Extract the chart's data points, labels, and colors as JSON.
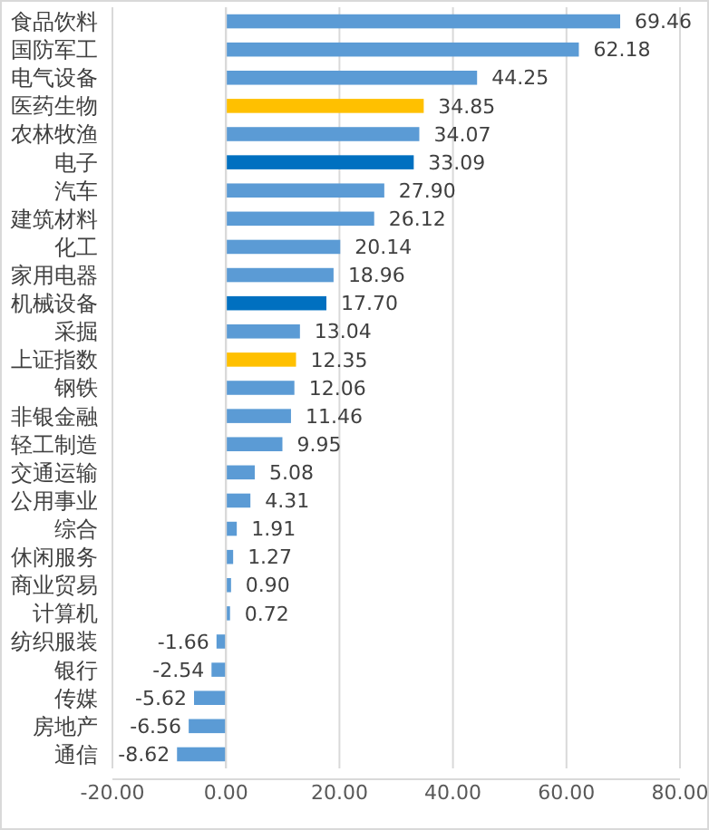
{
  "chart_data": {
    "type": "bar",
    "orientation": "horizontal",
    "categories": [
      "食品饮料",
      "国防军工",
      "电气设备",
      "医药生物",
      "农林牧渔",
      "电子",
      "汽车",
      "建筑材料",
      "化工",
      "家用电器",
      "机械设备",
      "采掘",
      "上证指数",
      "钢铁",
      "非银金融",
      "轻工制造",
      "交通运输",
      "公用事业",
      "综合",
      "休闲服务",
      "商业贸易",
      "计算机",
      "纺织服装",
      "银行",
      "传媒",
      "房地产",
      "通信"
    ],
    "values": [
      69.46,
      62.18,
      44.25,
      34.85,
      34.07,
      33.09,
      27.9,
      26.12,
      20.14,
      18.96,
      17.7,
      13.04,
      12.35,
      12.06,
      11.46,
      9.95,
      5.08,
      4.31,
      1.91,
      1.27,
      0.9,
      0.72,
      -1.66,
      -2.54,
      -5.62,
      -6.56,
      -8.62
    ],
    "value_labels": [
      "69.46",
      "62.18",
      "44.25",
      "34.85",
      "34.07",
      "33.09",
      "27.90",
      "26.12",
      "20.14",
      "18.96",
      "17.70",
      "13.04",
      "12.35",
      "12.06",
      "11.46",
      "9.95",
      "5.08",
      "4.31",
      "1.91",
      "1.27",
      "0.90",
      "0.72",
      "-1.66",
      "-2.54",
      "-5.62",
      "-6.56",
      "-8.62"
    ],
    "colors": [
      "#5b9bd5",
      "#5b9bd5",
      "#5b9bd5",
      "#ffc000",
      "#5b9bd5",
      "#0070c0",
      "#5b9bd5",
      "#5b9bd5",
      "#5b9bd5",
      "#5b9bd5",
      "#0070c0",
      "#5b9bd5",
      "#ffc000",
      "#5b9bd5",
      "#5b9bd5",
      "#5b9bd5",
      "#5b9bd5",
      "#5b9bd5",
      "#5b9bd5",
      "#5b9bd5",
      "#5b9bd5",
      "#5b9bd5",
      "#5b9bd5",
      "#5b9bd5",
      "#5b9bd5",
      "#5b9bd5",
      "#5b9bd5"
    ],
    "xlim": [
      -20,
      80
    ],
    "xticks": [
      {
        "value": -20,
        "label": "-20.00"
      },
      {
        "value": 0,
        "label": "0.00"
      },
      {
        "value": 20,
        "label": "20.00"
      },
      {
        "value": 40,
        "label": "40.00"
      },
      {
        "value": 60,
        "label": "60.00"
      },
      {
        "value": 80,
        "label": "80.00"
      }
    ],
    "grid": "x"
  }
}
